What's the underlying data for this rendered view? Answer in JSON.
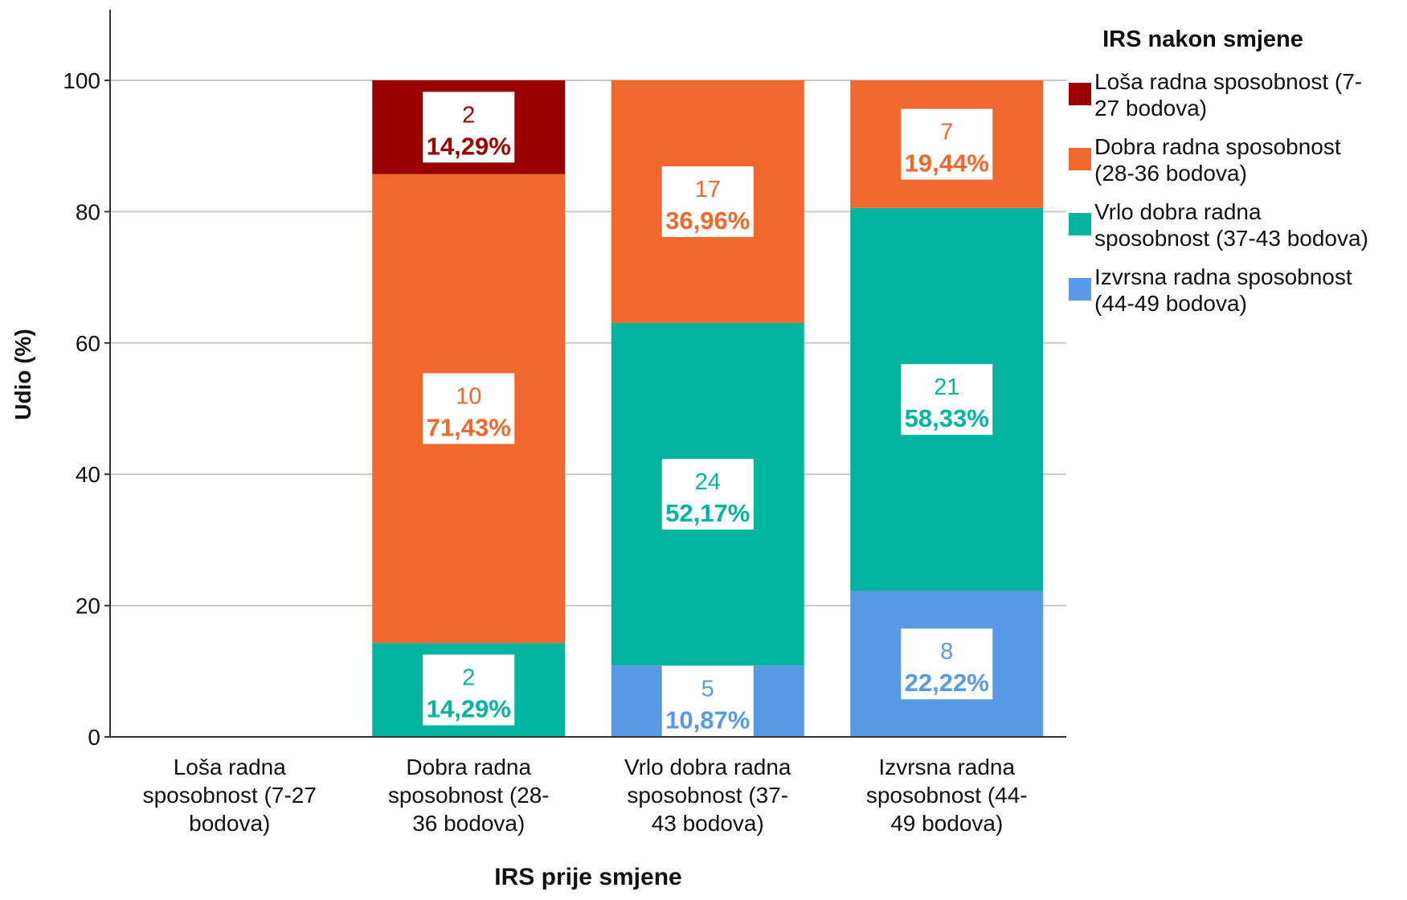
{
  "chart_data": {
    "type": "bar",
    "stacked": true,
    "percent_stacked": true,
    "xlabel": "IRS prije smjene",
    "ylabel": "Udio (%)",
    "ylim": [
      0,
      100
    ],
    "yticks": [
      0,
      20,
      40,
      60,
      80,
      100
    ],
    "grid": true,
    "legend_title": "IRS nakon smjene",
    "legend_position": "right",
    "categories": [
      [
        "Loša radna",
        "sposobnost (7-27",
        "bodova)"
      ],
      [
        "Dobra radna",
        "sposobnost (28-",
        "36 bodova)"
      ],
      [
        "Vrlo dobra radna",
        "sposobnost (37-",
        "43 bodova)"
      ],
      [
        "Izvrsna radna",
        "sposobnost (44-",
        "49 bodova)"
      ]
    ],
    "series": [
      {
        "name": [
          "Izvrsna radna sposobnost",
          "(44-49 bodova)"
        ],
        "color": "#5899e5",
        "counts": [
          null,
          null,
          5,
          8
        ],
        "values": [
          null,
          null,
          10.87,
          22.22
        ],
        "labels": [
          null,
          null,
          "10,87%",
          "22,22%"
        ]
      },
      {
        "name": [
          "Vrlo dobra radna",
          "sposobnost (37-43 bodova)"
        ],
        "color": "#00b4a0",
        "counts": [
          null,
          2,
          24,
          21
        ],
        "values": [
          null,
          14.29,
          52.17,
          58.33
        ],
        "labels": [
          null,
          "14,29%",
          "52,17%",
          "58,33%"
        ]
      },
      {
        "name": [
          "Dobra radna sposobnost",
          "(28-36 bodova)"
        ],
        "color": "#f0682d",
        "counts": [
          null,
          10,
          17,
          7
        ],
        "values": [
          null,
          71.43,
          36.96,
          19.44
        ],
        "labels": [
          null,
          "71,43%",
          "36,96%",
          "19,44%"
        ]
      },
      {
        "name": [
          "Loša radna sposobnost (7-",
          "27 bodova)"
        ],
        "color": "#9b0000",
        "counts": [
          null,
          2,
          null,
          null
        ],
        "values": [
          null,
          14.29,
          null,
          null
        ],
        "labels": [
          null,
          "14,29%",
          null,
          null
        ]
      }
    ],
    "legend_order": [
      3,
      2,
      1,
      0
    ],
    "colors": {
      "grid": "#c8c8c8",
      "axis": "#333333",
      "text": "#111111"
    }
  }
}
